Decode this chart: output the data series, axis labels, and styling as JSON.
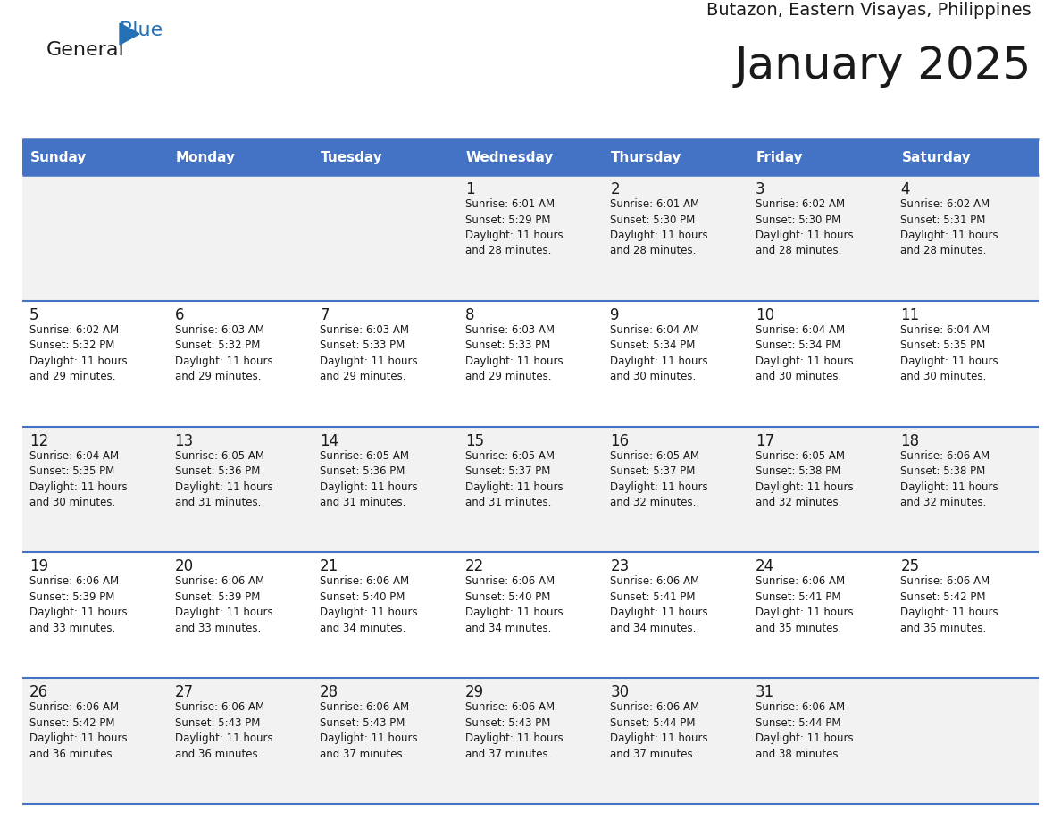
{
  "title": "January 2025",
  "subtitle": "Butazon, Eastern Visayas, Philippines",
  "header_bg": "#4472c4",
  "header_text": "#ffffff",
  "cell_bg_odd": "#f2f2f2",
  "cell_bg_even": "#ffffff",
  "border_color": "#4472c4",
  "text_color": "#1a1a1a",
  "days_of_week": [
    "Sunday",
    "Monday",
    "Tuesday",
    "Wednesday",
    "Thursday",
    "Friday",
    "Saturday"
  ],
  "weeks": [
    [
      {
        "day": "",
        "lines": []
      },
      {
        "day": "",
        "lines": []
      },
      {
        "day": "",
        "lines": []
      },
      {
        "day": "1",
        "lines": [
          "Sunrise: 6:01 AM",
          "Sunset: 5:29 PM",
          "Daylight: 11 hours",
          "and 28 minutes."
        ]
      },
      {
        "day": "2",
        "lines": [
          "Sunrise: 6:01 AM",
          "Sunset: 5:30 PM",
          "Daylight: 11 hours",
          "and 28 minutes."
        ]
      },
      {
        "day": "3",
        "lines": [
          "Sunrise: 6:02 AM",
          "Sunset: 5:30 PM",
          "Daylight: 11 hours",
          "and 28 minutes."
        ]
      },
      {
        "day": "4",
        "lines": [
          "Sunrise: 6:02 AM",
          "Sunset: 5:31 PM",
          "Daylight: 11 hours",
          "and 28 minutes."
        ]
      }
    ],
    [
      {
        "day": "5",
        "lines": [
          "Sunrise: 6:02 AM",
          "Sunset: 5:32 PM",
          "Daylight: 11 hours",
          "and 29 minutes."
        ]
      },
      {
        "day": "6",
        "lines": [
          "Sunrise: 6:03 AM",
          "Sunset: 5:32 PM",
          "Daylight: 11 hours",
          "and 29 minutes."
        ]
      },
      {
        "day": "7",
        "lines": [
          "Sunrise: 6:03 AM",
          "Sunset: 5:33 PM",
          "Daylight: 11 hours",
          "and 29 minutes."
        ]
      },
      {
        "day": "8",
        "lines": [
          "Sunrise: 6:03 AM",
          "Sunset: 5:33 PM",
          "Daylight: 11 hours",
          "and 29 minutes."
        ]
      },
      {
        "day": "9",
        "lines": [
          "Sunrise: 6:04 AM",
          "Sunset: 5:34 PM",
          "Daylight: 11 hours",
          "and 30 minutes."
        ]
      },
      {
        "day": "10",
        "lines": [
          "Sunrise: 6:04 AM",
          "Sunset: 5:34 PM",
          "Daylight: 11 hours",
          "and 30 minutes."
        ]
      },
      {
        "day": "11",
        "lines": [
          "Sunrise: 6:04 AM",
          "Sunset: 5:35 PM",
          "Daylight: 11 hours",
          "and 30 minutes."
        ]
      }
    ],
    [
      {
        "day": "12",
        "lines": [
          "Sunrise: 6:04 AM",
          "Sunset: 5:35 PM",
          "Daylight: 11 hours",
          "and 30 minutes."
        ]
      },
      {
        "day": "13",
        "lines": [
          "Sunrise: 6:05 AM",
          "Sunset: 5:36 PM",
          "Daylight: 11 hours",
          "and 31 minutes."
        ]
      },
      {
        "day": "14",
        "lines": [
          "Sunrise: 6:05 AM",
          "Sunset: 5:36 PM",
          "Daylight: 11 hours",
          "and 31 minutes."
        ]
      },
      {
        "day": "15",
        "lines": [
          "Sunrise: 6:05 AM",
          "Sunset: 5:37 PM",
          "Daylight: 11 hours",
          "and 31 minutes."
        ]
      },
      {
        "day": "16",
        "lines": [
          "Sunrise: 6:05 AM",
          "Sunset: 5:37 PM",
          "Daylight: 11 hours",
          "and 32 minutes."
        ]
      },
      {
        "day": "17",
        "lines": [
          "Sunrise: 6:05 AM",
          "Sunset: 5:38 PM",
          "Daylight: 11 hours",
          "and 32 minutes."
        ]
      },
      {
        "day": "18",
        "lines": [
          "Sunrise: 6:06 AM",
          "Sunset: 5:38 PM",
          "Daylight: 11 hours",
          "and 32 minutes."
        ]
      }
    ],
    [
      {
        "day": "19",
        "lines": [
          "Sunrise: 6:06 AM",
          "Sunset: 5:39 PM",
          "Daylight: 11 hours",
          "and 33 minutes."
        ]
      },
      {
        "day": "20",
        "lines": [
          "Sunrise: 6:06 AM",
          "Sunset: 5:39 PM",
          "Daylight: 11 hours",
          "and 33 minutes."
        ]
      },
      {
        "day": "21",
        "lines": [
          "Sunrise: 6:06 AM",
          "Sunset: 5:40 PM",
          "Daylight: 11 hours",
          "and 34 minutes."
        ]
      },
      {
        "day": "22",
        "lines": [
          "Sunrise: 6:06 AM",
          "Sunset: 5:40 PM",
          "Daylight: 11 hours",
          "and 34 minutes."
        ]
      },
      {
        "day": "23",
        "lines": [
          "Sunrise: 6:06 AM",
          "Sunset: 5:41 PM",
          "Daylight: 11 hours",
          "and 34 minutes."
        ]
      },
      {
        "day": "24",
        "lines": [
          "Sunrise: 6:06 AM",
          "Sunset: 5:41 PM",
          "Daylight: 11 hours",
          "and 35 minutes."
        ]
      },
      {
        "day": "25",
        "lines": [
          "Sunrise: 6:06 AM",
          "Sunset: 5:42 PM",
          "Daylight: 11 hours",
          "and 35 minutes."
        ]
      }
    ],
    [
      {
        "day": "26",
        "lines": [
          "Sunrise: 6:06 AM",
          "Sunset: 5:42 PM",
          "Daylight: 11 hours",
          "and 36 minutes."
        ]
      },
      {
        "day": "27",
        "lines": [
          "Sunrise: 6:06 AM",
          "Sunset: 5:43 PM",
          "Daylight: 11 hours",
          "and 36 minutes."
        ]
      },
      {
        "day": "28",
        "lines": [
          "Sunrise: 6:06 AM",
          "Sunset: 5:43 PM",
          "Daylight: 11 hours",
          "and 37 minutes."
        ]
      },
      {
        "day": "29",
        "lines": [
          "Sunrise: 6:06 AM",
          "Sunset: 5:43 PM",
          "Daylight: 11 hours",
          "and 37 minutes."
        ]
      },
      {
        "day": "30",
        "lines": [
          "Sunrise: 6:06 AM",
          "Sunset: 5:44 PM",
          "Daylight: 11 hours",
          "and 37 minutes."
        ]
      },
      {
        "day": "31",
        "lines": [
          "Sunrise: 6:06 AM",
          "Sunset: 5:44 PM",
          "Daylight: 11 hours",
          "and 38 minutes."
        ]
      },
      {
        "day": "",
        "lines": []
      }
    ]
  ]
}
